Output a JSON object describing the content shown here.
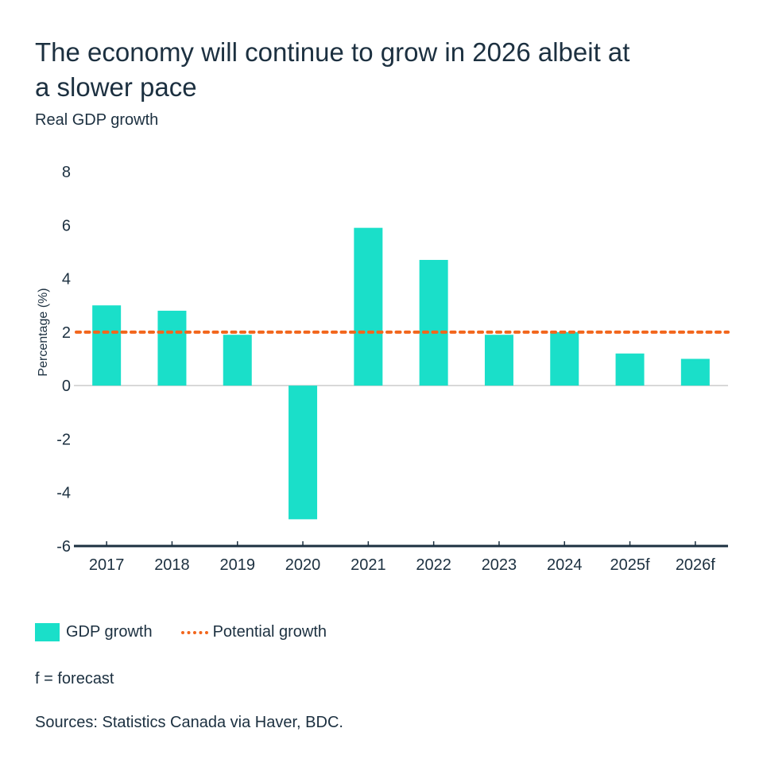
{
  "chart_data": {
    "type": "bar",
    "title": "The economy will continue to grow in 2026 albeit at a slower pace",
    "subtitle": "Real GDP growth",
    "xlabel": "",
    "ylabel": "Percentage (%)",
    "ylim": [
      -6,
      8
    ],
    "yticks": [
      8,
      6,
      4,
      2,
      0,
      -2,
      -4,
      -6
    ],
    "ytick_labels": [
      "8",
      "6",
      "4",
      "2",
      "0",
      "-2",
      "-4",
      "-6"
    ],
    "categories": [
      "2017",
      "2018",
      "2019",
      "2020",
      "2021",
      "2022",
      "2023",
      "2024",
      "2025f",
      "2026f"
    ],
    "series": [
      {
        "name": "GDP growth",
        "type": "bar",
        "color": "#1adfc9",
        "values": [
          3.0,
          2.8,
          1.9,
          -5.0,
          5.9,
          4.7,
          1.9,
          2.0,
          1.2,
          1.0
        ]
      },
      {
        "name": "Potential growth",
        "type": "reference-line",
        "style": "dotted",
        "color": "#f2661c",
        "value": 2.0
      }
    ],
    "legend_position": "bottom-left",
    "grid": false,
    "note": "f = forecast",
    "source": "Sources: Statistics Canada via Haver, BDC."
  },
  "header": {
    "title": "The economy will continue to grow in 2026 albeit at a slower pace",
    "subtitle": "Real GDP growth"
  },
  "legend": {
    "items": [
      {
        "label": "GDP growth"
      },
      {
        "label": "Potential growth"
      }
    ]
  },
  "footer": {
    "note": "f = forecast",
    "source": "Sources: Statistics Canada via Haver, BDC."
  },
  "colors": {
    "bar": "#1adfc9",
    "reference": "#f2661c",
    "text": "#1c3040",
    "axis": "#1c3040",
    "zero_line": "#cccccc"
  }
}
